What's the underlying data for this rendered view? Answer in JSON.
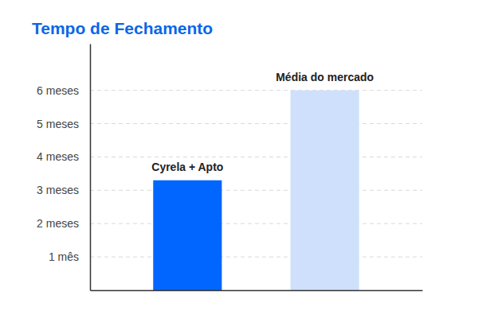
{
  "chart_data": {
    "type": "bar",
    "title": "Tempo de Fechamento",
    "categories": [
      "Cyrela + Apto",
      "Média do mercado"
    ],
    "values": [
      3.3,
      6
    ],
    "colors": [
      "#0066ff",
      "#cfe0fc"
    ],
    "ylim": [
      0,
      7.4
    ],
    "yticks": [
      {
        "value": 1,
        "label": "1 mês"
      },
      {
        "value": 2,
        "label": "2 meses"
      },
      {
        "value": 3,
        "label": "3 meses"
      },
      {
        "value": 4,
        "label": "4 meses"
      },
      {
        "value": 5,
        "label": "5 meses"
      },
      {
        "value": 6,
        "label": "6 meses"
      }
    ],
    "grid": true
  }
}
